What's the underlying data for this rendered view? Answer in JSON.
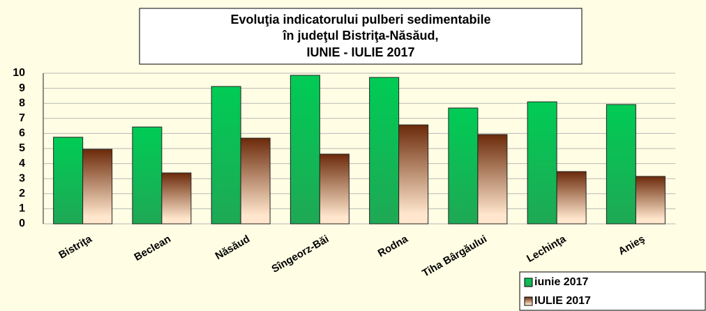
{
  "chart_data": {
    "type": "bar",
    "title": [
      "Evoluţia indicatorului pulberi sedimentabile",
      "în judeţul Bistriţa-Năsăud,",
      "IUNIE - IULIE  2017"
    ],
    "categories": [
      "Bistriţa",
      "Beclean",
      "Năsăud",
      "Sîngeorz-Băi",
      "Rodna",
      "Tiha Bârgăului",
      "Lechinţa",
      "Anieş"
    ],
    "series": [
      {
        "name": "iunie 2017",
        "color": "#00cc55",
        "values": [
          5.75,
          6.43,
          9.12,
          9.86,
          9.72,
          7.69,
          8.1,
          7.92
        ]
      },
      {
        "name": "IULIE 2017",
        "color": "#6b2a0a",
        "values": [
          4.95,
          3.38,
          5.69,
          4.63,
          6.57,
          5.93,
          3.47,
          3.15
        ]
      }
    ],
    "ylim": [
      0,
      10
    ],
    "yticks": [
      0,
      1,
      2,
      3,
      4,
      5,
      6,
      7,
      8,
      9,
      10
    ],
    "grid": true,
    "legend": "bottom-right"
  }
}
